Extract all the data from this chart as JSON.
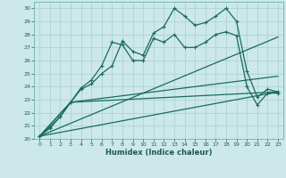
{
  "background_color": "#cce8e8",
  "grid_color": "#add4d4",
  "line_color": "#1a6b5a",
  "xlabel": "Humidex (Indice chaleur)",
  "xlim": [
    -0.5,
    23.5
  ],
  "ylim": [
    20,
    30.5
  ],
  "xticks": [
    0,
    1,
    2,
    3,
    4,
    5,
    6,
    7,
    8,
    9,
    10,
    11,
    12,
    13,
    14,
    15,
    16,
    17,
    18,
    19,
    20,
    21,
    22,
    23
  ],
  "yticks": [
    20,
    21,
    22,
    23,
    24,
    25,
    26,
    27,
    28,
    29,
    30
  ],
  "line1_x": [
    0,
    1,
    2,
    3,
    4,
    5,
    6,
    7,
    8,
    9,
    10,
    11,
    12,
    13,
    14,
    15,
    16,
    17,
    18,
    19,
    20,
    21,
    22,
    23
  ],
  "line1_y": [
    20.2,
    20.8,
    21.7,
    22.8,
    23.8,
    24.2,
    25.0,
    25.6,
    27.5,
    26.7,
    26.4,
    28.1,
    28.6,
    30.0,
    29.4,
    28.7,
    28.9,
    29.4,
    30.0,
    29.0,
    25.2,
    23.2,
    23.8,
    23.6
  ],
  "line2_x": [
    0,
    1,
    2,
    3,
    4,
    5,
    6,
    7,
    8,
    9,
    10,
    11,
    12,
    13,
    14,
    15,
    16,
    17,
    18,
    19,
    20,
    21,
    22,
    23
  ],
  "line2_y": [
    20.2,
    20.9,
    21.7,
    22.8,
    23.9,
    24.5,
    25.6,
    27.4,
    27.2,
    26.0,
    26.0,
    27.7,
    27.4,
    28.0,
    27.0,
    27.0,
    27.4,
    28.0,
    28.2,
    27.9,
    24.0,
    22.6,
    23.5,
    23.5
  ],
  "line3_x": [
    0,
    23
  ],
  "line3_y": [
    20.2,
    27.8
  ],
  "line4_x": [
    0,
    23
  ],
  "line4_y": [
    20.2,
    23.6
  ],
  "line5_x": [
    0,
    3,
    23
  ],
  "line5_y": [
    20.2,
    22.8,
    23.6
  ],
  "line6_x": [
    0,
    3,
    23
  ],
  "line6_y": [
    20.2,
    22.8,
    24.8
  ]
}
